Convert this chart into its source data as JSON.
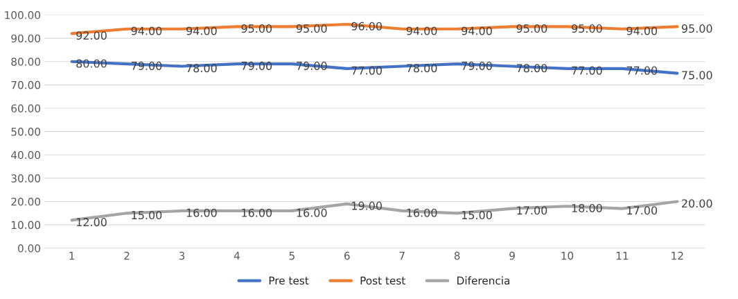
{
  "chart_data": {
    "type": "line",
    "categories": [
      "1",
      "2",
      "3",
      "4",
      "5",
      "6",
      "7",
      "8",
      "9",
      "10",
      "11",
      "12"
    ],
    "series": [
      {
        "name": "Pre test",
        "color": "#4472c4",
        "values": [
          80,
          79,
          78,
          79,
          79,
          77,
          78,
          79,
          78,
          77,
          77,
          75
        ],
        "value_labels": [
          "80.00",
          "79.00",
          "78.00",
          "79.00",
          "79.00",
          "77.00",
          "78.00",
          "79.00",
          "78.00",
          "77.00",
          "77.00",
          "75.00"
        ]
      },
      {
        "name": "Post test",
        "color": "#ed7d31",
        "values": [
          92,
          94,
          94,
          95,
          95,
          96,
          94,
          94,
          95,
          95,
          94,
          95
        ],
        "value_labels": [
          "92.00",
          "94.00",
          "94.00",
          "95.00",
          "95.00",
          "96.00",
          "94.00",
          "94.00",
          "95.00",
          "95.00",
          "94.00",
          "95.00"
        ]
      },
      {
        "name": "Diferencia",
        "color": "#a5a5a5",
        "values": [
          12,
          15,
          16,
          16,
          16,
          19,
          16,
          15,
          17,
          18,
          17,
          20
        ],
        "value_labels": [
          "12.00",
          "15.00",
          "16.00",
          "16.00",
          "16.00",
          "19.00",
          "16.00",
          "15.00",
          "17.00",
          "18.00",
          "17.00",
          "20.00"
        ]
      }
    ],
    "ylim": [
      0,
      100
    ],
    "yticks": [
      {
        "value": 0,
        "label": "0.00"
      },
      {
        "value": 10,
        "label": "10.00"
      },
      {
        "value": 20,
        "label": "20.00"
      },
      {
        "value": 30,
        "label": "30.00"
      },
      {
        "value": 40,
        "label": "40.00"
      },
      {
        "value": 50,
        "label": "50.00"
      },
      {
        "value": 60,
        "label": "60.00"
      },
      {
        "value": 70,
        "label": "70.00"
      },
      {
        "value": 80,
        "label": "80.00"
      },
      {
        "value": 90,
        "label": "90.00"
      },
      {
        "value": 100,
        "label": "100.00"
      }
    ],
    "grid": "y",
    "legend": "bottom",
    "marker": "none",
    "line_style": "solid"
  }
}
